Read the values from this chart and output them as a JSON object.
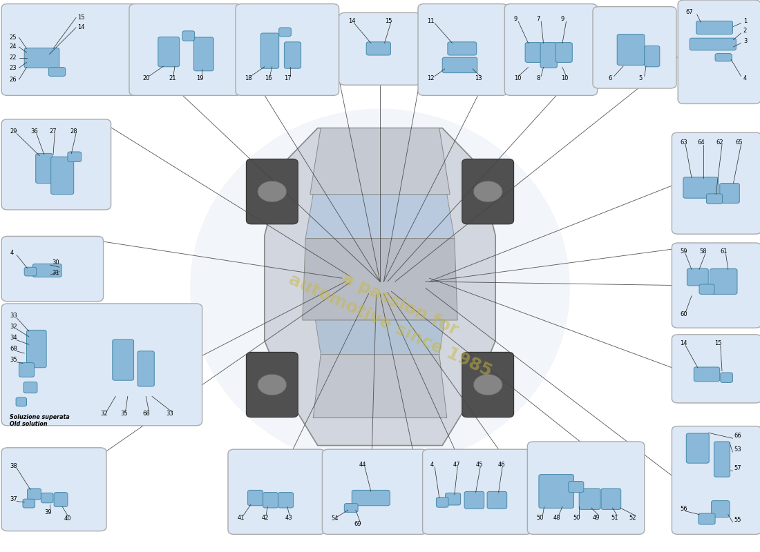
{
  "bg_color": "#ffffff",
  "panel_fill": "#dce8f5",
  "panel_edge": "#aaaaaa",
  "line_color": "#444444",
  "label_color": "#000000",
  "watermark_text": "a passion for\nautomotive since 1985",
  "watermark_color": "#c8b840",
  "ecu_fill": "#8ab8d8",
  "ecu_edge": "#4488aa",
  "panels": [
    {
      "bounds": [
        0.01,
        0.835,
        0.165,
        0.15
      ]
    },
    {
      "bounds": [
        0.178,
        0.835,
        0.132,
        0.15
      ]
    },
    {
      "bounds": [
        0.318,
        0.835,
        0.12,
        0.15
      ]
    },
    {
      "bounds": [
        0.454,
        0.854,
        0.092,
        0.115
      ]
    },
    {
      "bounds": [
        0.558,
        0.835,
        0.102,
        0.15
      ]
    },
    {
      "bounds": [
        0.672,
        0.835,
        0.106,
        0.15
      ]
    },
    {
      "bounds": [
        0.788,
        0.848,
        0.094,
        0.132
      ]
    },
    {
      "bounds": [
        0.9,
        0.82,
        0.093,
        0.172
      ]
    },
    {
      "bounds": [
        0.01,
        0.628,
        0.128,
        0.148
      ]
    },
    {
      "bounds": [
        0.01,
        0.462,
        0.118,
        0.102
      ]
    },
    {
      "bounds": [
        0.01,
        0.237,
        0.248,
        0.205
      ]
    },
    {
      "bounds": [
        0.01,
        0.046,
        0.122,
        0.135
      ]
    },
    {
      "bounds": [
        0.308,
        0.04,
        0.112,
        0.138
      ]
    },
    {
      "bounds": [
        0.432,
        0.04,
        0.122,
        0.138
      ]
    },
    {
      "bounds": [
        0.564,
        0.04,
        0.128,
        0.138
      ]
    },
    {
      "bounds": [
        0.702,
        0.04,
        0.138,
        0.152
      ]
    },
    {
      "bounds": [
        0.892,
        0.584,
        0.102,
        0.168
      ]
    },
    {
      "bounds": [
        0.892,
        0.414,
        0.102,
        0.138
      ]
    },
    {
      "bounds": [
        0.892,
        0.278,
        0.102,
        0.108
      ]
    },
    {
      "bounds": [
        0.892,
        0.04,
        0.102,
        0.18
      ]
    }
  ],
  "connection_lines": [
    [
      [
        0.175,
        0.912
      ],
      [
        0.5,
        0.49
      ]
    ],
    [
      [
        0.31,
        0.912
      ],
      [
        0.5,
        0.49
      ]
    ],
    [
      [
        0.438,
        0.912
      ],
      [
        0.5,
        0.49
      ]
    ],
    [
      [
        0.5,
        0.912
      ],
      [
        0.5,
        0.49
      ]
    ],
    [
      [
        0.56,
        0.912
      ],
      [
        0.505,
        0.49
      ]
    ],
    [
      [
        0.66,
        0.912
      ],
      [
        0.505,
        0.49
      ]
    ],
    [
      [
        0.788,
        0.912
      ],
      [
        0.51,
        0.49
      ]
    ],
    [
      [
        0.9,
        0.906
      ],
      [
        0.52,
        0.49
      ]
    ],
    [
      [
        0.138,
        0.776
      ],
      [
        0.46,
        0.5
      ]
    ],
    [
      [
        0.128,
        0.564
      ],
      [
        0.45,
        0.496
      ]
    ],
    [
      [
        0.258,
        0.35
      ],
      [
        0.455,
        0.49
      ]
    ],
    [
      [
        0.132,
        0.175
      ],
      [
        0.46,
        0.488
      ]
    ],
    [
      [
        0.36,
        0.114
      ],
      [
        0.485,
        0.468
      ]
    ],
    [
      [
        0.488,
        0.114
      ],
      [
        0.495,
        0.466
      ]
    ],
    [
      [
        0.554,
        0.114
      ],
      [
        0.5,
        0.468
      ]
    ],
    [
      [
        0.622,
        0.114
      ],
      [
        0.505,
        0.468
      ]
    ],
    [
      [
        0.692,
        0.116
      ],
      [
        0.51,
        0.47
      ]
    ],
    [
      [
        0.84,
        0.116
      ],
      [
        0.515,
        0.472
      ]
    ],
    [
      [
        0.892,
        0.668
      ],
      [
        0.568,
        0.492
      ]
    ],
    [
      [
        0.892,
        0.55
      ],
      [
        0.565,
        0.49
      ]
    ],
    [
      [
        0.892,
        0.483
      ],
      [
        0.56,
        0.49
      ]
    ],
    [
      [
        0.892,
        0.33
      ],
      [
        0.565,
        0.496
      ]
    ],
    [
      [
        0.892,
        0.13
      ],
      [
        0.56,
        0.478
      ]
    ]
  ]
}
